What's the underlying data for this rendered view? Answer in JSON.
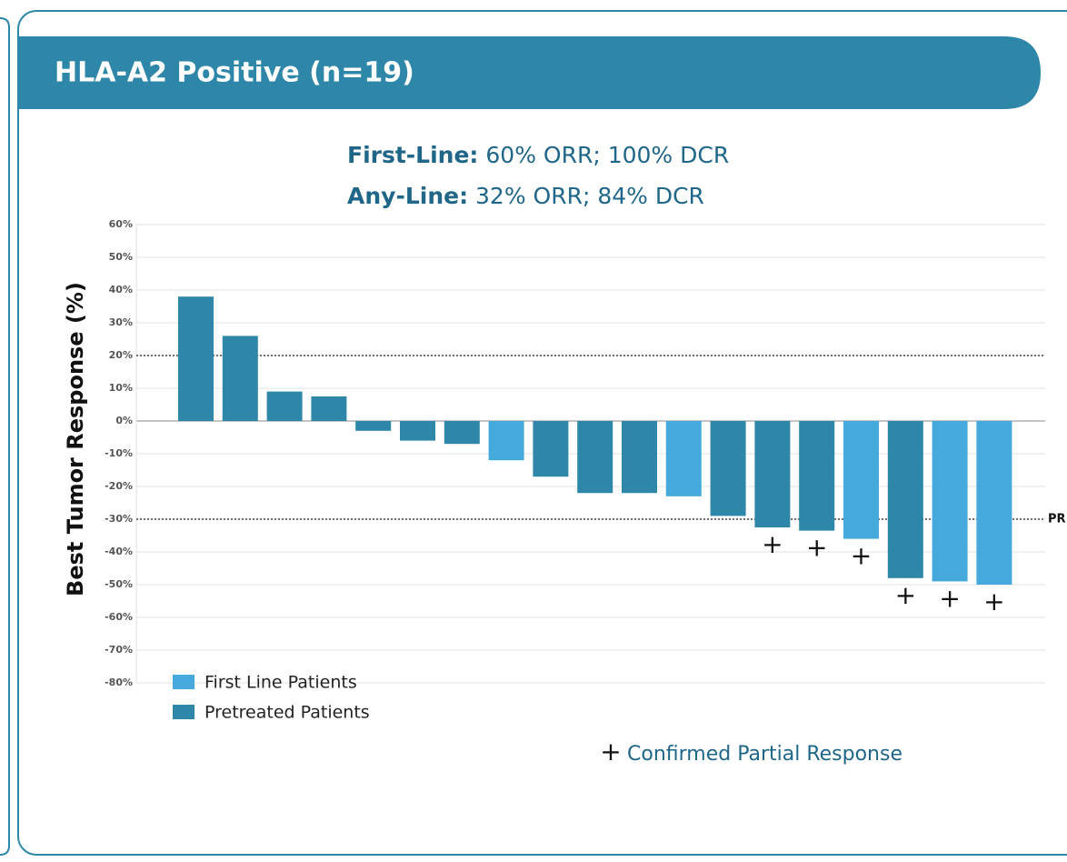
{
  "chart_data": {
    "type": "bar",
    "title": "HLA-A2 Positive (n=19)",
    "annotations": [
      {
        "label": "First-Line:",
        "text": "60% ORR; 100% DCR"
      },
      {
        "label": "Any-Line:",
        "text": "32% ORR; 84% DCR"
      }
    ],
    "ylabel": "Best Tumor Response (%)",
    "categories": [
      null,
      null,
      null,
      null,
      null,
      null,
      null,
      null,
      null,
      null,
      null,
      null,
      null,
      null,
      null,
      null,
      null,
      null,
      null
    ],
    "series": [
      {
        "name": "First Line Patients",
        "color": "#45a9dc",
        "values": [
          null,
          null,
          null,
          null,
          null,
          null,
          null,
          -12,
          null,
          null,
          null,
          -23,
          null,
          null,
          null,
          -36,
          null,
          -49,
          -50
        ]
      },
      {
        "name": "Pretreated Patients",
        "color": "#2e86a8",
        "values": [
          38,
          26,
          9,
          7.5,
          -3,
          -6,
          -7,
          null,
          -17,
          -22,
          -22,
          null,
          -29,
          -32.5,
          -33.5,
          null,
          -48,
          null,
          null
        ]
      }
    ],
    "confirmed_response": [
      false,
      false,
      false,
      false,
      false,
      false,
      false,
      false,
      false,
      false,
      false,
      false,
      false,
      true,
      true,
      true,
      true,
      true,
      true
    ],
    "confirmed_marker": {
      "symbol": "+",
      "label": "Confirmed Partial Response"
    },
    "reference_lines": [
      {
        "value": 20
      },
      {
        "value": -30,
        "label": "PR"
      }
    ],
    "ylim": [
      -80,
      60
    ],
    "yticks": [
      {
        "value": 60,
        "label": "60%"
      },
      {
        "value": 50,
        "label": "50%"
      },
      {
        "value": 40,
        "label": "40%"
      },
      {
        "value": 30,
        "label": "30%"
      },
      {
        "value": 20,
        "label": "20%"
      },
      {
        "value": 10,
        "label": "10%"
      },
      {
        "value": 0,
        "label": "0%"
      },
      {
        "value": -10,
        "label": "-10%"
      },
      {
        "value": -20,
        "label": "-20%"
      },
      {
        "value": -30,
        "label": "-30%"
      },
      {
        "value": -40,
        "label": "-40%"
      },
      {
        "value": -50,
        "label": "-50%"
      },
      {
        "value": -60,
        "label": "-60%"
      },
      {
        "value": -70,
        "label": "-70%"
      },
      {
        "value": -80,
        "label": "-80%"
      }
    ],
    "grid": true,
    "legend": "bottom-left"
  }
}
